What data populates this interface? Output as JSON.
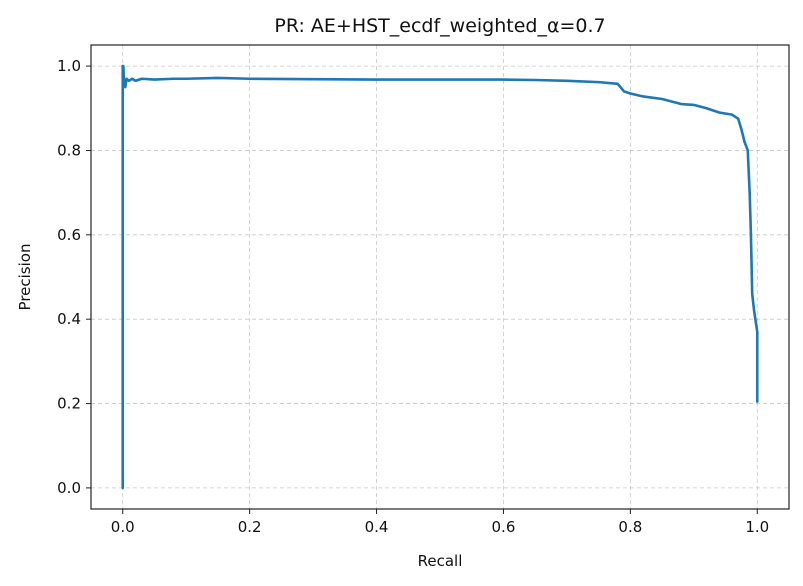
{
  "chart_data": {
    "type": "line",
    "title": "PR: AE+HST_ecdf_weighted_α=0.7",
    "xlabel": "Recall",
    "ylabel": "Precision",
    "xlim": [
      -0.05,
      1.05
    ],
    "ylim": [
      -0.05,
      1.05
    ],
    "xticks": [
      0.0,
      0.2,
      0.4,
      0.6,
      0.8,
      1.0
    ],
    "xtick_labels": [
      "0.0",
      "0.2",
      "0.4",
      "0.6",
      "0.8",
      "1.0"
    ],
    "yticks": [
      0.0,
      0.2,
      0.4,
      0.6,
      0.8,
      1.0
    ],
    "ytick_labels": [
      "0.0",
      "0.2",
      "0.4",
      "0.6",
      "0.8",
      "1.0"
    ],
    "grid": true,
    "legend": "none",
    "series": [
      {
        "name": "PR curve",
        "color": "#1f77b4",
        "x": [
          0.0,
          0.0,
          0.0,
          0.001,
          0.002,
          0.004,
          0.006,
          0.01,
          0.015,
          0.02,
          0.03,
          0.05,
          0.08,
          0.1,
          0.15,
          0.2,
          0.3,
          0.4,
          0.5,
          0.6,
          0.65,
          0.7,
          0.75,
          0.78,
          0.79,
          0.8,
          0.82,
          0.85,
          0.88,
          0.9,
          0.92,
          0.94,
          0.96,
          0.97,
          0.975,
          0.98,
          0.985,
          0.988,
          0.99,
          0.992,
          0.995,
          0.997,
          0.999,
          1.0,
          1.0
        ],
        "y": [
          0.0,
          0.84,
          1.0,
          1.0,
          0.96,
          0.95,
          0.97,
          0.965,
          0.97,
          0.965,
          0.97,
          0.968,
          0.97,
          0.97,
          0.972,
          0.97,
          0.969,
          0.968,
          0.968,
          0.968,
          0.967,
          0.965,
          0.962,
          0.958,
          0.94,
          0.935,
          0.928,
          0.922,
          0.91,
          0.908,
          0.9,
          0.89,
          0.885,
          0.875,
          0.85,
          0.82,
          0.8,
          0.7,
          0.6,
          0.46,
          0.42,
          0.4,
          0.38,
          0.37,
          0.205
        ]
      }
    ]
  }
}
